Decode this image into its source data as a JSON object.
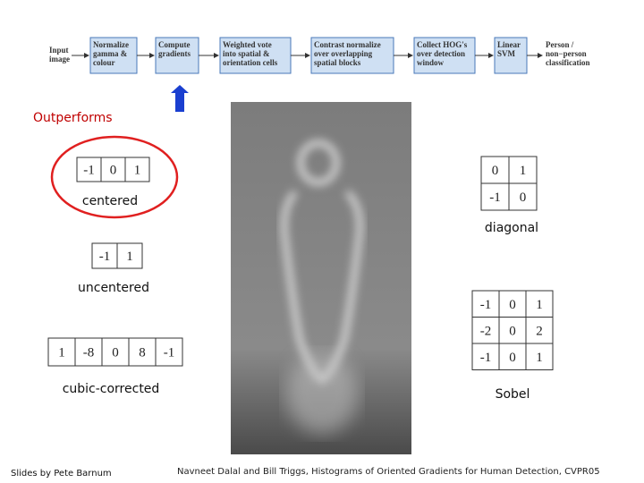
{
  "pipeline": {
    "input": [
      "Input",
      "image"
    ],
    "steps": [
      [
        "Normalize",
        "gamma &",
        "colour"
      ],
      [
        "Compute",
        "gradients"
      ],
      [
        "Weighted vote",
        "into spatial &",
        "orientation cells"
      ],
      [
        "Contrast normalize",
        "over overlapping",
        "spatial blocks"
      ],
      [
        "Collect HOG's",
        "over detection",
        "window"
      ],
      [
        "Linear",
        "SVM"
      ]
    ],
    "output": [
      "Person /",
      "non−person",
      "classification"
    ]
  },
  "note": "Outperforms",
  "kernels": [
    {
      "label": "centered",
      "rows": [
        [
          -1,
          0,
          1
        ]
      ]
    },
    {
      "label": "uncentered",
      "rows": [
        [
          -1,
          1
        ]
      ]
    },
    {
      "label": "cubic-corrected",
      "rows": [
        [
          1,
          -8,
          0,
          8,
          -1
        ]
      ]
    },
    {
      "label": "diagonal",
      "rows": [
        [
          0,
          1
        ],
        [
          -1,
          0
        ]
      ]
    },
    {
      "label": "Sobel",
      "rows": [
        [
          -1,
          0,
          1
        ],
        [
          -2,
          0,
          2
        ],
        [
          -1,
          0,
          1
        ]
      ]
    }
  ],
  "footer": {
    "left": "Slides by Pete Barnum",
    "right": "Navneet Dalal and Bill Triggs, Histograms of Oriented Gradients for Human Detection, CVPR05"
  }
}
